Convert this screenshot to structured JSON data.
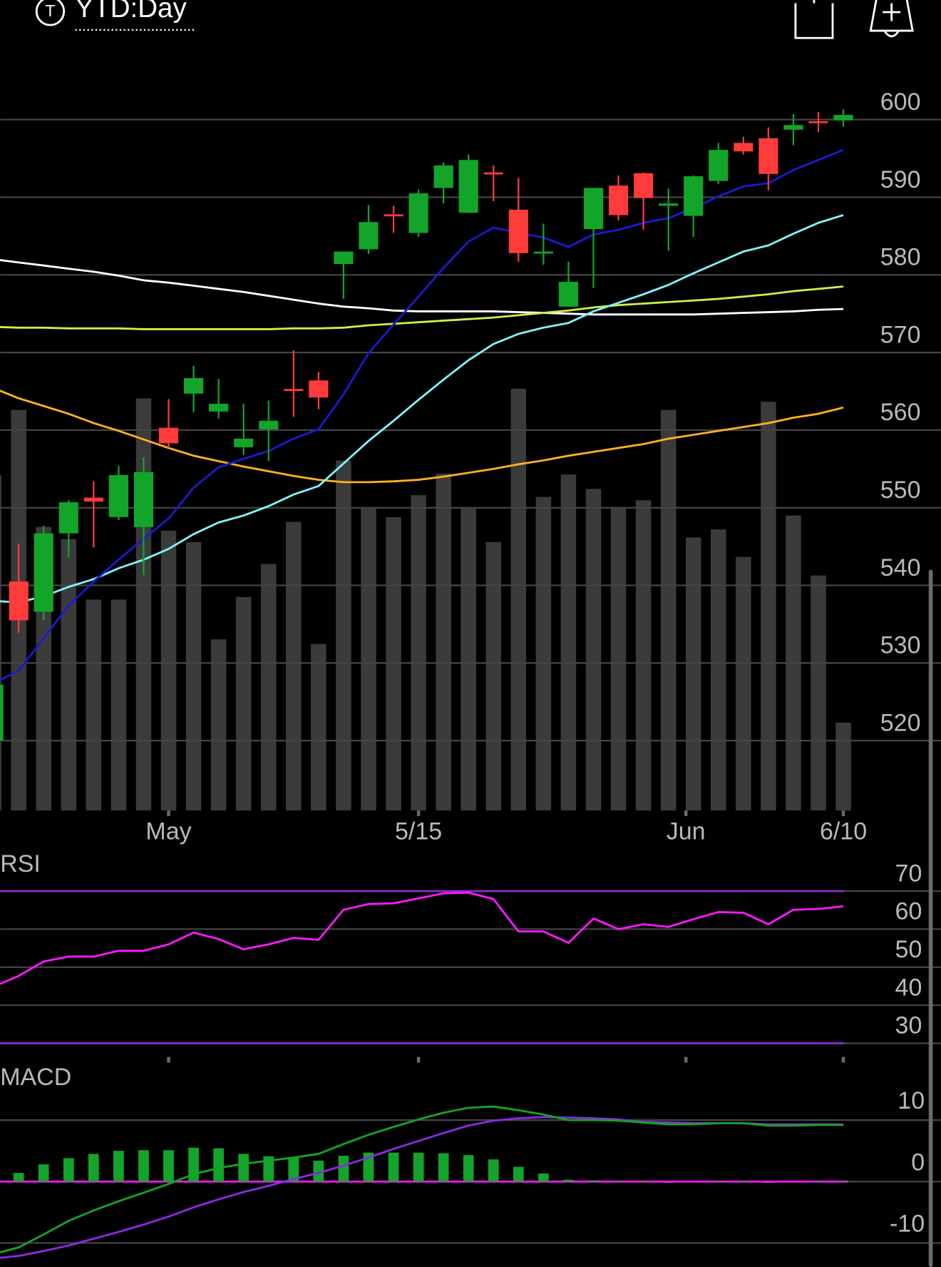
{
  "header": {
    "icon": "T",
    "title": "YTD:Day"
  },
  "chart_data": [
    {
      "type": "candlestick",
      "x": [
        0,
        1,
        2,
        3,
        4,
        5,
        6,
        7,
        8,
        9,
        10,
        11,
        12,
        13,
        14,
        15,
        16,
        17,
        18,
        19,
        20,
        21,
        22,
        23,
        24,
        25,
        26,
        27,
        28,
        29,
        30,
        31,
        32,
        33,
        34
      ],
      "xlim": [
        0.26,
        37.9
      ],
      "xticks": [
        {
          "value": 7,
          "label": "May"
        },
        {
          "value": 17,
          "label": "5/15"
        },
        {
          "value": 27.7,
          "label": "Jun"
        },
        {
          "value": 34,
          "label": "6/10"
        }
      ],
      "ylim": [
        511,
        605
      ],
      "yticks": [
        520,
        530,
        540,
        550,
        560,
        570,
        580,
        590,
        600
      ],
      "grid": true,
      "up_color": "#12a52a",
      "down_color": "#ff3b3b",
      "open": [
        520.0,
        540.5,
        536.6,
        546.7,
        551.3,
        548.8,
        547.5,
        560.3,
        564.7,
        562.4,
        557.8,
        560.1,
        565.3,
        566.4,
        581.4,
        583.3,
        587.8,
        585.4,
        591.2,
        588.0,
        593.2,
        588.4,
        582.8,
        575.9,
        585.9,
        591.5,
        593.1,
        588.9,
        587.6,
        592.1,
        597.0,
        597.6,
        598.7,
        599.8,
        599.9
      ],
      "high": [
        527.5,
        545.4,
        547.7,
        551.0,
        553.4,
        555.4,
        556.5,
        564.0,
        568.3,
        566.6,
        563.4,
        563.8,
        570.3,
        567.5,
        583.0,
        589.0,
        588.9,
        591.0,
        594.5,
        595.5,
        594.1,
        592.5,
        586.6,
        581.7,
        591.2,
        592.8,
        593.2,
        591.1,
        592.8,
        597.0,
        597.8,
        599.0,
        600.7,
        601.0,
        601.3
      ],
      "low": [
        520.0,
        533.9,
        535.5,
        543.6,
        544.9,
        548.4,
        541.3,
        557.7,
        562.3,
        561.5,
        556.8,
        556.0,
        561.7,
        562.7,
        576.9,
        582.7,
        585.4,
        584.9,
        589.2,
        588.0,
        589.5,
        581.7,
        581.3,
        575.9,
        578.3,
        587.0,
        585.8,
        583.1,
        584.9,
        591.7,
        595.5,
        590.9,
        596.7,
        598.4,
        599.1
      ],
      "close": [
        527.2,
        535.5,
        546.7,
        550.7,
        550.8,
        554.2,
        554.6,
        558.3,
        566.7,
        563.4,
        558.9,
        561.2,
        565.1,
        564.2,
        583.0,
        586.8,
        587.6,
        590.5,
        594.1,
        594.8,
        593.0,
        582.8,
        583.0,
        579.1,
        591.2,
        587.7,
        589.9,
        589.2,
        592.7,
        596.1,
        595.9,
        593.0,
        599.3,
        599.6,
        600.6
      ],
      "overlays": [
        {
          "color": "#ffffff",
          "values": [
            582.0,
            581.6,
            581.2,
            580.8,
            580.4,
            579.9,
            579.3,
            579.0,
            578.6,
            578.2,
            577.8,
            577.3,
            576.8,
            576.3,
            575.9,
            575.7,
            575.4,
            575.3,
            575.3,
            575.3,
            575.3,
            575.2,
            575.1,
            575.0,
            574.9,
            574.9,
            574.9,
            574.9,
            574.9,
            575.0,
            575.1,
            575.2,
            575.3,
            575.5,
            575.6
          ]
        },
        {
          "color": "#ffb21f",
          "values": [
            565.4,
            564.1,
            563.1,
            562.1,
            560.9,
            559.9,
            558.8,
            557.7,
            556.7,
            556.0,
            555.3,
            554.7,
            554.1,
            553.6,
            553.3,
            553.3,
            553.4,
            553.6,
            554.0,
            554.5,
            555.0,
            555.6,
            556.1,
            556.7,
            557.2,
            557.7,
            558.2,
            558.9,
            559.4,
            559.9,
            560.4,
            560.9,
            561.6,
            562.1,
            562.9
          ]
        },
        {
          "color": "#c6f24a",
          "values": [
            573.3,
            573.2,
            573.2,
            573.1,
            573.1,
            573.1,
            573.0,
            573.0,
            573.0,
            573.0,
            573.0,
            573.0,
            573.1,
            573.1,
            573.2,
            573.5,
            573.7,
            573.9,
            574.1,
            574.3,
            574.5,
            574.8,
            575.1,
            575.4,
            575.8,
            576.1,
            576.3,
            576.5,
            576.7,
            576.9,
            577.2,
            577.5,
            577.9,
            578.2,
            578.5
          ]
        },
        {
          "color": "#7ff5ff",
          "values": [
            538.0,
            537.8,
            538.6,
            539.8,
            540.8,
            542.2,
            543.3,
            544.7,
            546.6,
            548.1,
            549.0,
            550.2,
            551.7,
            552.8,
            555.7,
            558.6,
            561.2,
            563.9,
            566.5,
            569.0,
            571.1,
            572.4,
            573.2,
            573.8,
            575.3,
            576.4,
            577.5,
            578.7,
            580.2,
            581.6,
            583.0,
            583.8,
            585.3,
            586.7,
            587.7
          ]
        },
        {
          "color": "#1a1ad0",
          "values": [
            527.4,
            529.0,
            533.2,
            537.4,
            540.5,
            543.3,
            546.0,
            548.6,
            552.6,
            555.2,
            556.3,
            557.3,
            558.9,
            560.1,
            564.6,
            569.9,
            573.6,
            577.2,
            580.9,
            584.3,
            586.1,
            585.4,
            584.8,
            583.6,
            585.2,
            585.8,
            586.7,
            587.3,
            588.6,
            590.1,
            591.4,
            591.8,
            593.5,
            594.8,
            596.1
          ]
        }
      ],
      "volume": [
        79.3,
        94.8,
        67.1,
        64.2,
        49.9,
        49.9,
        97.5,
        66.2,
        63.5,
        40.5,
        50.5,
        58.3,
        68.3,
        39.4,
        82.8,
        71.5,
        69.4,
        74.6,
        79.7,
        71.5,
        63.5,
        99.8,
        74.2,
        79.5,
        76.1,
        71.5,
        73.4,
        94.8,
        64.6,
        66.5,
        60.0,
        96.7,
        69.8,
        55.6,
        20.8
      ],
      "volume_lim": [
        0,
        100
      ],
      "volume_color": "#3b3b3b"
    },
    {
      "type": "line",
      "title": "RSI",
      "values": [
        44.9,
        47.7,
        51.5,
        52.8,
        52.8,
        54.3,
        54.3,
        56.0,
        59.1,
        57.4,
        54.7,
        56.0,
        57.7,
        57.2,
        65.1,
        66.6,
        66.8,
        68.1,
        69.4,
        69.6,
        67.9,
        59.4,
        59.4,
        56.4,
        62.8,
        60.0,
        61.3,
        60.6,
        62.6,
        64.5,
        64.3,
        61.3,
        65.1,
        65.3,
        66.0
      ],
      "color": "#ff19ff",
      "ylim": [
        26.4,
        79.1
      ],
      "yticks": [
        70,
        60,
        50,
        40,
        30
      ],
      "levels": [
        70,
        30
      ],
      "level_color": "#8a2fc9"
    },
    {
      "type": "macd",
      "title": "MACD",
      "macd": [
        -11.8,
        -10.7,
        -8.6,
        -6.4,
        -4.7,
        -3.2,
        -1.8,
        -0.4,
        1.2,
        2.2,
        2.9,
        3.4,
        3.9,
        4.5,
        6.1,
        7.6,
        8.9,
        10.1,
        11.2,
        12.0,
        12.2,
        11.6,
        10.9,
        10.0,
        10.0,
        9.9,
        9.6,
        9.3,
        9.3,
        9.5,
        9.5,
        9.1,
        9.1,
        9.2,
        9.2
      ],
      "signal": [
        -12.5,
        -12.1,
        -11.3,
        -10.4,
        -9.3,
        -8.2,
        -7.0,
        -5.7,
        -4.2,
        -2.9,
        -1.7,
        -0.7,
        0.4,
        1.4,
        2.6,
        3.9,
        5.3,
        6.6,
        7.9,
        9.1,
        9.9,
        10.3,
        10.5,
        10.4,
        10.3,
        10.1,
        9.7,
        9.6,
        9.5,
        9.5,
        9.5,
        9.3,
        9.3,
        9.3,
        9.3
      ],
      "histogram": [
        0.3,
        1.4,
        2.8,
        3.8,
        4.5,
        5.0,
        5.1,
        5.1,
        5.5,
        5.4,
        4.5,
        4.1,
        3.9,
        3.4,
        4.2,
        4.7,
        4.7,
        4.7,
        4.6,
        4.3,
        3.6,
        2.4,
        1.3,
        0.3,
        0.2,
        0.1,
        0.1,
        -0.2,
        -0.1,
        0.1,
        0.1,
        -0.2,
        -0.1,
        0.1,
        0.1
      ],
      "macd_color": "#14a524",
      "signal_color": "#8a2be2",
      "histogram_up_color": "#12a52a",
      "histogram_down_color": "#ff19ff",
      "zero_color": "#ff19ff",
      "ylim": [
        -13.9,
        18.7
      ],
      "yticks": [
        10,
        0,
        -10
      ]
    }
  ]
}
